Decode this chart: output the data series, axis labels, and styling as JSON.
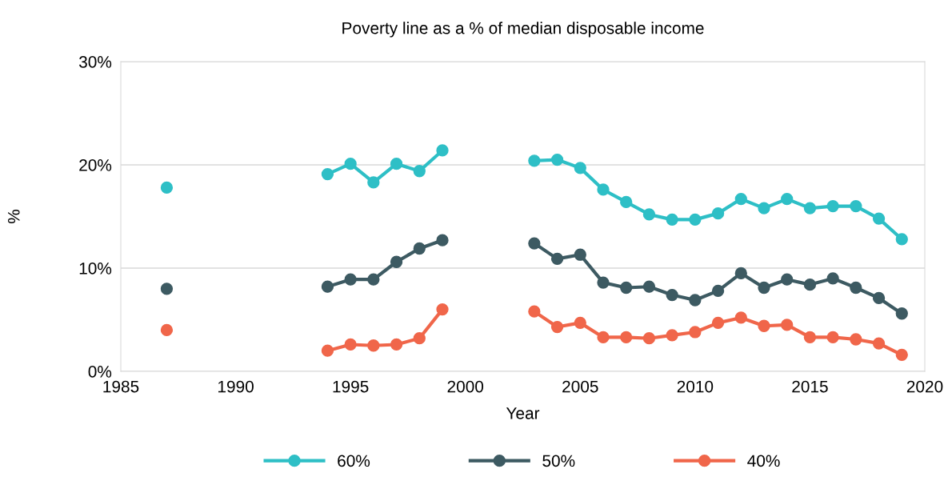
{
  "chart_data": {
    "type": "line",
    "title": "Poverty line as a % of median disposable income",
    "xlabel": "Year",
    "ylabel": "%",
    "x": [
      1987,
      1988,
      1989,
      1990,
      1991,
      1992,
      1993,
      1994,
      1995,
      1996,
      1997,
      1998,
      1999,
      2000,
      2001,
      2002,
      2003,
      2004,
      2005,
      2006,
      2007,
      2008,
      2009,
      2010,
      2011,
      2012,
      2013,
      2014,
      2015,
      2016,
      2017,
      2018,
      2019
    ],
    "series": [
      {
        "name": "60%",
        "color": "#2ebfc6",
        "values": [
          17.8,
          null,
          null,
          null,
          null,
          null,
          null,
          19.1,
          20.1,
          18.3,
          20.1,
          19.4,
          21.4,
          null,
          null,
          null,
          20.4,
          20.5,
          19.7,
          17.6,
          16.4,
          15.2,
          14.7,
          14.7,
          15.3,
          16.7,
          15.8,
          16.7,
          15.8,
          16.0,
          16.0,
          14.8,
          12.8
        ]
      },
      {
        "name": "50%",
        "color": "#3d5a62",
        "values": [
          8.0,
          null,
          null,
          null,
          null,
          null,
          null,
          8.2,
          8.9,
          8.9,
          10.6,
          11.9,
          12.7,
          null,
          null,
          null,
          12.4,
          10.9,
          11.3,
          8.6,
          8.1,
          8.2,
          7.4,
          6.9,
          7.8,
          9.5,
          8.1,
          8.9,
          8.4,
          9.0,
          8.1,
          7.1,
          5.6
        ]
      },
      {
        "name": "40%",
        "color": "#f0664a",
        "values": [
          4.0,
          null,
          null,
          null,
          null,
          null,
          null,
          2.0,
          2.6,
          2.5,
          2.6,
          3.2,
          6.0,
          null,
          null,
          null,
          5.8,
          4.3,
          4.7,
          3.3,
          3.3,
          3.2,
          3.5,
          3.8,
          4.7,
          5.2,
          4.4,
          4.5,
          3.3,
          3.3,
          3.1,
          2.7,
          1.6
        ]
      }
    ],
    "xlim": [
      1985,
      2020
    ],
    "xticks": [
      1985,
      1990,
      1995,
      2000,
      2005,
      2010,
      2015,
      2020
    ],
    "ylim": [
      0,
      30
    ],
    "yticks": [
      {
        "value": 0,
        "label": "0%"
      },
      {
        "value": 10,
        "label": "10%"
      },
      {
        "value": 20,
        "label": "20%"
      },
      {
        "value": 30,
        "label": "30%"
      }
    ],
    "grid": "y",
    "legend": "bottom",
    "marker": "circle",
    "line_style": "solid"
  }
}
